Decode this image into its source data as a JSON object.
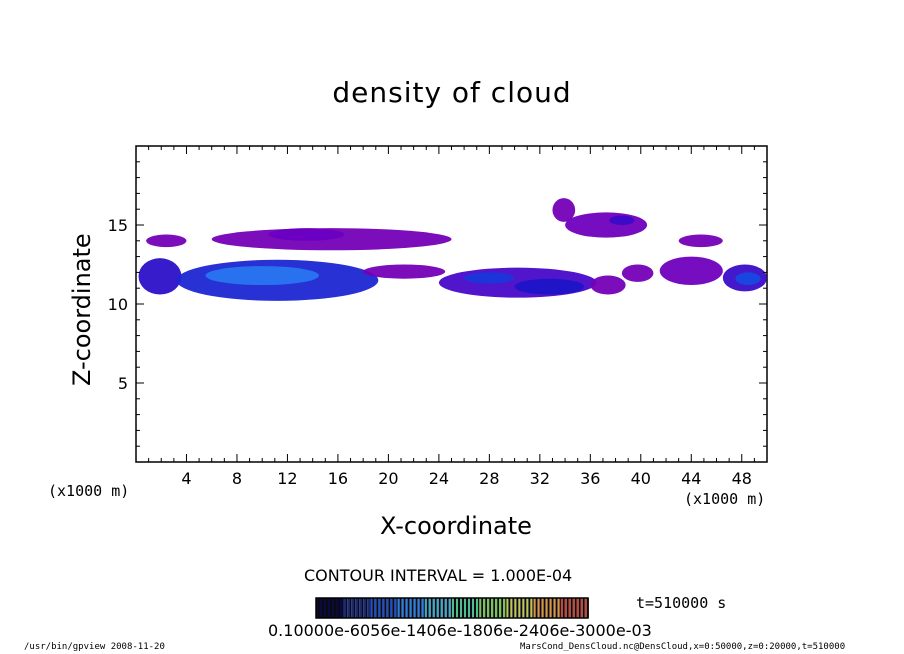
{
  "chart_data": {
    "type": "heatmap",
    "title": "density of cloud",
    "xlabel": "X-coordinate",
    "ylabel": "Z-coordinate",
    "x_unit": "(x1000 m)",
    "xlim": [
      0,
      50
    ],
    "ylim": [
      0,
      20
    ],
    "x_ticks": [
      "4",
      "8",
      "12",
      "16",
      "20",
      "24",
      "28",
      "32",
      "36",
      "40",
      "44",
      "48"
    ],
    "y_ticks": [
      "5",
      "10",
      "15"
    ],
    "contour_interval": "CONTOUR INTERVAL = 1.000E-04",
    "time_label": "t=510000 s",
    "colorbar_labels": "0.10000e-6056e-1406e-1806e-2406e-3000e-03",
    "colorbar_range": [
      0.0001,
      0.001
    ],
    "cloud_regions": [
      {
        "x": [
          0.2,
          3.6
        ],
        "z": [
          10.6,
          12.9
        ],
        "level": 0.55
      },
      {
        "x": [
          3.2,
          19.2
        ],
        "z": [
          10.2,
          12.8
        ],
        "level": 0.65
      },
      {
        "x": [
          5.5,
          14.5
        ],
        "z": [
          11.2,
          12.4
        ],
        "level": 0.85
      },
      {
        "x": [
          0.8,
          4.0
        ],
        "z": [
          13.6,
          14.4
        ],
        "level": 0.2
      },
      {
        "x": [
          6.0,
          25.0
        ],
        "z": [
          13.4,
          14.8
        ],
        "level": 0.2
      },
      {
        "x": [
          10.5,
          16.5
        ],
        "z": [
          14.0,
          14.8
        ],
        "level": 0.3
      },
      {
        "x": [
          18.0,
          24.5
        ],
        "z": [
          11.6,
          12.5
        ],
        "level": 0.2
      },
      {
        "x": [
          24.0,
          36.5
        ],
        "z": [
          10.4,
          12.3
        ],
        "level": 0.45
      },
      {
        "x": [
          26.0,
          30.0
        ],
        "z": [
          11.3,
          12.0
        ],
        "level": 0.7
      },
      {
        "x": [
          30.0,
          35.5
        ],
        "z": [
          10.6,
          11.6
        ],
        "level": 0.6
      },
      {
        "x": [
          36.0,
          38.8
        ],
        "z": [
          10.6,
          11.8
        ],
        "level": 0.2
      },
      {
        "x": [
          33.0,
          34.8
        ],
        "z": [
          15.2,
          16.7
        ],
        "level": 0.2
      },
      {
        "x": [
          34.0,
          40.5
        ],
        "z": [
          14.2,
          15.8
        ],
        "level": 0.25
      },
      {
        "x": [
          37.5,
          39.5
        ],
        "z": [
          15.0,
          15.6
        ],
        "level": 0.5
      },
      {
        "x": [
          38.5,
          41.0
        ],
        "z": [
          11.4,
          12.5
        ],
        "level": 0.2
      },
      {
        "x": [
          41.5,
          46.5
        ],
        "z": [
          11.2,
          13.0
        ],
        "level": 0.25
      },
      {
        "x": [
          43.0,
          46.5
        ],
        "z": [
          13.6,
          14.4
        ],
        "level": 0.2
      },
      {
        "x": [
          46.5,
          50.0
        ],
        "z": [
          10.8,
          12.5
        ],
        "level": 0.5
      },
      {
        "x": [
          47.5,
          49.5
        ],
        "z": [
          11.2,
          12.0
        ],
        "level": 0.75
      }
    ]
  },
  "footer": {
    "left": "/usr/bin/gpview  2008-11-20",
    "right": "MarsCond_DensCloud.nc@DensCloud,x=0:50000,z=0:20000,t=510000"
  }
}
